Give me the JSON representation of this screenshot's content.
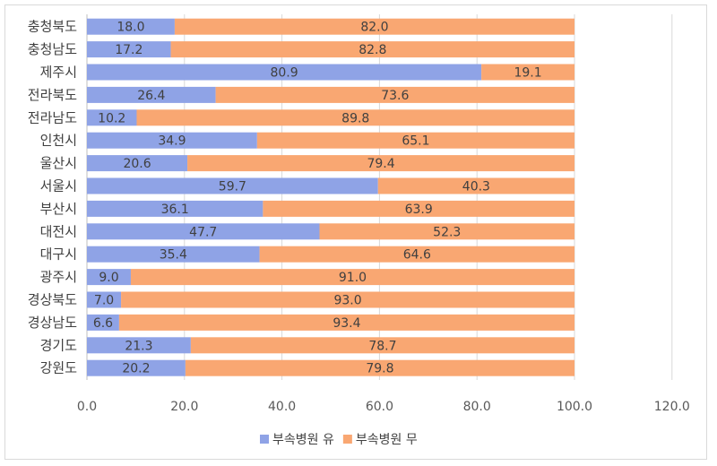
{
  "chart_data": {
    "type": "bar",
    "orientation": "horizontal",
    "stacked": true,
    "title": "",
    "xlabel": "",
    "ylabel": "",
    "xlim": [
      0,
      120
    ],
    "xticks": [
      "0.0",
      "20.0",
      "40.0",
      "60.0",
      "80.0",
      "100.0",
      "120.0"
    ],
    "grid": true,
    "legend_position": "bottom",
    "categories": [
      "충청북도",
      "충청남도",
      "제주시",
      "전라북도",
      "전라남도",
      "인천시",
      "울산시",
      "서울시",
      "부산시",
      "대전시",
      "대구시",
      "광주시",
      "경상북도",
      "경상남도",
      "경기도",
      "강원도"
    ],
    "series": [
      {
        "name": "부속병원 유",
        "color": "#8fa3e6",
        "values": [
          18.0,
          17.2,
          80.9,
          26.4,
          10.2,
          34.9,
          20.6,
          59.7,
          36.1,
          47.7,
          35.4,
          9.0,
          7.0,
          6.6,
          21.3,
          20.2
        ],
        "labels": [
          "18.0",
          "17.2",
          "80.9",
          "26.4",
          "10.2",
          "34.9",
          "20.6",
          "59.7",
          "36.1",
          "47.7",
          "35.4",
          "9.0",
          "7.0",
          "6.6",
          "21.3",
          "20.2"
        ]
      },
      {
        "name": "부속병원 무",
        "color": "#f9a772",
        "values": [
          82.0,
          82.8,
          19.1,
          73.6,
          89.8,
          65.1,
          79.4,
          40.3,
          63.9,
          52.3,
          64.6,
          91.0,
          93.0,
          93.4,
          78.7,
          79.8
        ],
        "labels": [
          "82.0",
          "82.8",
          "19.1",
          "73.6",
          "89.8",
          "65.1",
          "79.4",
          "40.3",
          "63.9",
          "52.3",
          "64.6",
          "91.0",
          "93.0",
          "93.4",
          "78.7",
          "79.8"
        ]
      }
    ]
  }
}
